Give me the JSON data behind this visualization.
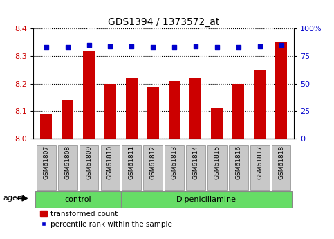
{
  "title": "GDS1394 / 1373572_at",
  "samples": [
    "GSM61807",
    "GSM61808",
    "GSM61809",
    "GSM61810",
    "GSM61811",
    "GSM61812",
    "GSM61813",
    "GSM61814",
    "GSM61815",
    "GSM61816",
    "GSM61817",
    "GSM61818"
  ],
  "bar_values": [
    8.09,
    8.14,
    8.32,
    8.2,
    8.22,
    8.19,
    8.21,
    8.22,
    8.11,
    8.2,
    8.25,
    8.35
  ],
  "percentile_values": [
    83,
    83,
    85,
    84,
    84,
    83,
    83,
    84,
    83,
    83,
    84,
    85
  ],
  "ylim_left": [
    8.0,
    8.4
  ],
  "ylim_right": [
    0,
    100
  ],
  "yticks_left": [
    8.0,
    8.1,
    8.2,
    8.3,
    8.4
  ],
  "yticks_right": [
    0,
    25,
    50,
    75,
    100
  ],
  "bar_color": "#cc0000",
  "dot_color": "#0000cc",
  "bar_width": 0.55,
  "group_labels": [
    "control",
    "D-penicillamine"
  ],
  "control_count": 4,
  "agent_label": "agent",
  "legend_bar_label": "transformed count",
  "legend_dot_label": "percentile rank within the sample",
  "tick_label_color_left": "#cc0000",
  "tick_label_color_right": "#0000cc",
  "xticklabel_bg": "#c8c8c8",
  "group_bg_color": "#66dd66",
  "group_border_color": "#888888"
}
